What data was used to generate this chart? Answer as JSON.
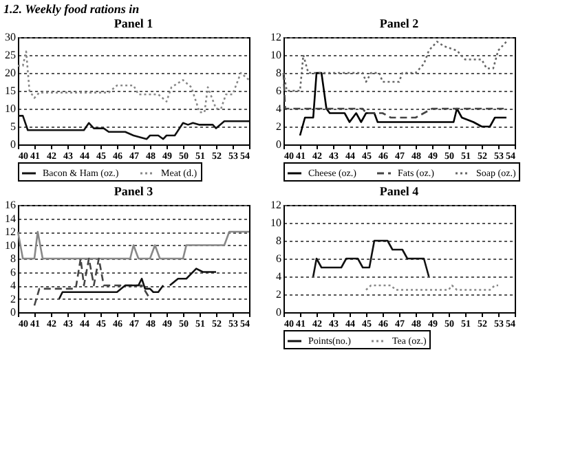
{
  "chart_data": [
    {
      "type": "line",
      "title": "Panel 1",
      "annotations": [
        "1.2. Weekly food rations in"
      ],
      "xlim": [
        40,
        54
      ],
      "xticks": [
        40,
        41,
        42,
        43,
        44,
        45,
        46,
        47,
        48,
        49,
        50,
        51,
        52,
        53,
        54
      ],
      "ylim": [
        0,
        30
      ],
      "yticks": [
        0,
        5,
        10,
        15,
        20,
        25,
        30
      ],
      "grid": "y",
      "legend": "bottom",
      "series": [
        {
          "name": "Bacon & Ham (oz.)",
          "color": "#111111",
          "line_style": "solid",
          "x": [
            40,
            40.3,
            40.6,
            44,
            44.3,
            44.6,
            45.2,
            45.5,
            46.5,
            47,
            47.8,
            48,
            48.5,
            48.8,
            49,
            49.5,
            50,
            50.3,
            50.6,
            51,
            51.8,
            52,
            52.5,
            54
          ],
          "values": [
            8,
            8,
            4,
            4,
            6,
            4.5,
            4.5,
            3.5,
            3.5,
            2.5,
            1.5,
            2.5,
            2.5,
            1.5,
            2.5,
            2.5,
            6,
            5.5,
            6,
            5.5,
            5.5,
            4.5,
            6.5,
            6.5
          ]
        },
        {
          "name": "Meat (d.)",
          "color": "#888888",
          "line_style": "dotted",
          "x": [
            40,
            40.3,
            40.5,
            40.7,
            41,
            41.3,
            45.5,
            46,
            47,
            47.3,
            48.5,
            49,
            49.3,
            50,
            50.5,
            51,
            51.3,
            51.5,
            52,
            52.3,
            52.6,
            53,
            53.5,
            54
          ],
          "values": [
            22,
            22,
            26,
            15,
            13,
            14.5,
            14.5,
            16.5,
            16.5,
            14,
            14,
            12,
            16,
            18,
            16,
            9,
            9,
            16,
            10,
            10,
            14,
            14,
            20,
            18
          ]
        }
      ]
    },
    {
      "type": "line",
      "title": "Panel 2",
      "xlim": [
        40,
        54
      ],
      "xticks": [
        40,
        41,
        42,
        43,
        44,
        45,
        46,
        47,
        48,
        49,
        50,
        51,
        52,
        53,
        54
      ],
      "ylim": [
        0,
        12
      ],
      "yticks": [
        0,
        2,
        4,
        6,
        8,
        10,
        12
      ],
      "grid": "y",
      "legend": "bottom",
      "series": [
        {
          "name": "Cheese (oz.)",
          "color": "#000000",
          "line_style": "solid",
          "x": [
            41,
            41.3,
            41.8,
            42,
            42.3,
            42.6,
            42.8,
            43.7,
            44,
            44.4,
            44.7,
            45,
            45.5,
            45.7,
            50.3,
            50.5,
            50.8,
            51.5,
            52,
            52.5,
            52.8,
            53.5
          ],
          "values": [
            1,
            3,
            3,
            8,
            8,
            4,
            3.5,
            3.5,
            2.5,
            3.5,
            2.5,
            3.5,
            3.5,
            2.5,
            2.5,
            4,
            3,
            2.5,
            2,
            2,
            3,
            3
          ]
        },
        {
          "name": "Fats (oz.)",
          "color": "#444444",
          "line_style": "dashed",
          "x": [
            40,
            40.1,
            44.8,
            45,
            46,
            46.5,
            48,
            48.5,
            49,
            53.5
          ],
          "values": [
            8,
            4,
            4,
            3.5,
            3.5,
            3,
            3,
            3.5,
            4,
            4
          ]
        },
        {
          "name": "Soap (oz.)",
          "color": "#666666",
          "line_style": "dotted",
          "x": [
            40,
            40.2,
            41,
            41.2,
            41.5,
            44.8,
            45,
            45.3,
            45.8,
            46,
            47,
            47.2,
            48,
            48.5,
            48.8,
            49.3,
            49.7,
            50.5,
            51,
            52,
            52.3,
            52.7,
            53,
            53.5
          ],
          "values": [
            8,
            6,
            6,
            10,
            8,
            8,
            7,
            8,
            8,
            7,
            7,
            8,
            8,
            9,
            10.5,
            11.5,
            11,
            10.5,
            9.5,
            9.5,
            8.5,
            8.5,
            10.5,
            11.5
          ]
        }
      ]
    },
    {
      "type": "line",
      "title": "Panel 3",
      "xlim": [
        40,
        54
      ],
      "xticks": [
        40,
        41,
        42,
        43,
        44,
        45,
        46,
        47,
        48,
        49,
        50,
        51,
        52,
        53,
        54
      ],
      "ylim": [
        0,
        16
      ],
      "yticks": [
        0,
        2,
        4,
        6,
        8,
        10,
        12,
        14,
        16
      ],
      "grid": "y",
      "series": [
        {
          "color": "#888888",
          "line_style": "solid",
          "x": [
            40,
            40.3,
            41,
            41.2,
            41.5,
            46.8,
            47,
            47.3,
            48,
            48.3,
            48.6,
            50,
            50.2,
            52.5,
            52.8,
            54
          ],
          "values": [
            12,
            8,
            8,
            12,
            8,
            8,
            10,
            8,
            8,
            10,
            8,
            8,
            10,
            10,
            12,
            12
          ]
        },
        {
          "color": "#444444",
          "line_style": "dashed",
          "x": [
            41,
            41.3,
            42,
            43.5,
            43.8,
            44,
            44.3,
            44.6,
            44.9,
            45.2,
            47.5,
            48
          ],
          "values": [
            1,
            3.5,
            3.5,
            3.5,
            8,
            4,
            8,
            4,
            8,
            4,
            4,
            2
          ]
        },
        {
          "color": "#111111",
          "line_style": "solid",
          "x": [
            42.5,
            42.7,
            46,
            46.5,
            47.3,
            47.5,
            47.7,
            48,
            48.2,
            48.5,
            48.8,
            49,
            49.2,
            49.7,
            50.2,
            50.8,
            51.2,
            52
          ],
          "values": [
            2,
            3,
            3,
            4,
            4,
            5,
            3.5,
            3.5,
            3,
            3,
            4,
            null,
            4,
            5,
            5,
            6.5,
            6,
            6
          ]
        }
      ]
    },
    {
      "type": "line",
      "title": "Panel 4",
      "xlim": [
        40,
        54
      ],
      "xticks": [
        40,
        41,
        42,
        43,
        44,
        45,
        46,
        47,
        48,
        49,
        50,
        51,
        52,
        53,
        54
      ],
      "ylim": [
        0,
        12
      ],
      "yticks": [
        0,
        2,
        4,
        6,
        8,
        10,
        12
      ],
      "grid": "y",
      "legend": "bottom",
      "series": [
        {
          "name": "Points(no.)",
          "color": "#111111",
          "line_style": "solid",
          "x": [
            41.8,
            42,
            42.3,
            43.5,
            43.8,
            44.5,
            44.8,
            45.2,
            45.5,
            46.3,
            46.6,
            47.2,
            47.5,
            48.5,
            48.8
          ],
          "values": [
            4,
            6,
            5,
            5,
            6,
            6,
            5,
            5,
            8,
            8,
            7,
            7,
            6,
            6,
            4
          ]
        },
        {
          "name": "Tea (oz.)",
          "color": "#888888",
          "line_style": "dotted",
          "x": [
            45,
            45.3,
            46.5,
            46.8,
            50,
            50.2,
            50.5,
            52.5,
            52.8,
            53
          ],
          "values": [
            2.5,
            3,
            3,
            2.5,
            2.5,
            3,
            2.5,
            2.5,
            3,
            3
          ]
        }
      ]
    }
  ]
}
